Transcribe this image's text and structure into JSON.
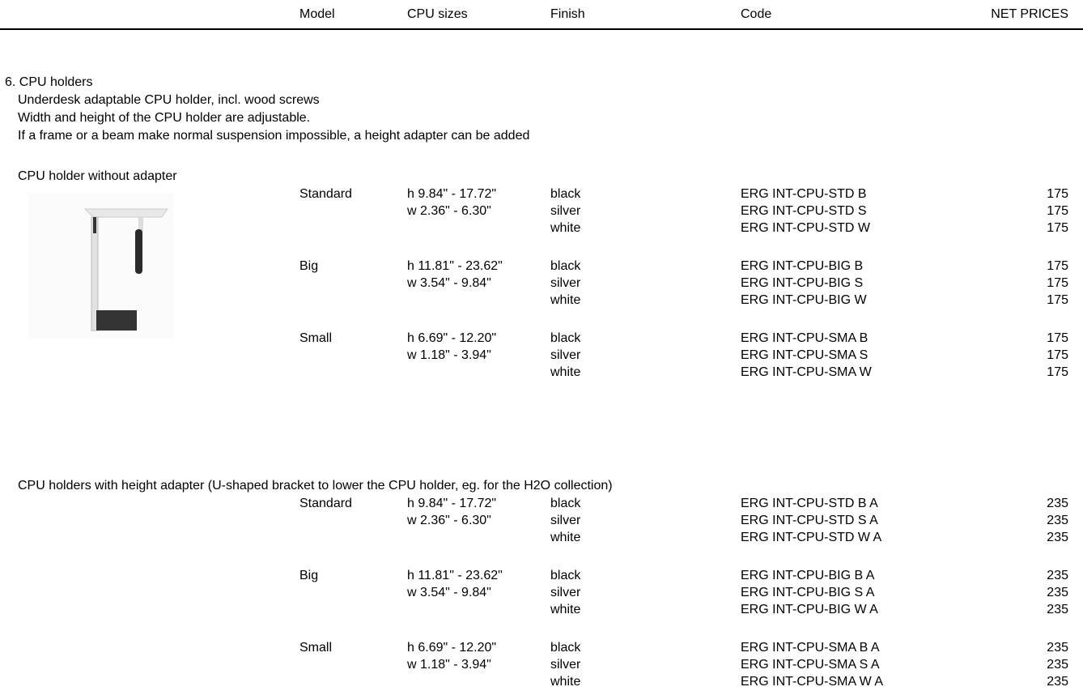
{
  "header": {
    "columns": [
      "Model",
      "CPU sizes",
      "Finish",
      "Code",
      "NET PRICES"
    ]
  },
  "section": {
    "title": "6. CPU holders",
    "description": [
      "Underdesk adaptable CPU holder, incl. wood screws",
      "Width and height of the CPU holder are adjustable.",
      "If a frame or a beam make normal suspension impossible, a height adapter can be added"
    ]
  },
  "groups": [
    {
      "title": "CPU holder without adapter",
      "models": [
        {
          "model": "Standard",
          "sizes": [
            "h 9.84\" - 17.72\"",
            "w 2.36\" - 6.30\""
          ],
          "rows": [
            {
              "finish": "black",
              "code": "ERG INT-CPU-STD B",
              "price": 175
            },
            {
              "finish": "silver",
              "code": "ERG INT-CPU-STD S",
              "price": 175
            },
            {
              "finish": "white",
              "code": "ERG INT-CPU-STD W",
              "price": 175
            }
          ]
        },
        {
          "model": "Big",
          "sizes": [
            "h 11.81\" - 23.62\"",
            "w 3.54\" - 9.84\""
          ],
          "rows": [
            {
              "finish": "black",
              "code": "ERG INT-CPU-BIG B",
              "price": 175
            },
            {
              "finish": "silver",
              "code": "ERG INT-CPU-BIG S",
              "price": 175
            },
            {
              "finish": "white",
              "code": "ERG INT-CPU-BIG W",
              "price": 175
            }
          ]
        },
        {
          "model": "Small",
          "sizes": [
            "h 6.69\" - 12.20\"",
            "w 1.18\" - 3.94\""
          ],
          "rows": [
            {
              "finish": "black",
              "code": "ERG INT-CPU-SMA B",
              "price": 175
            },
            {
              "finish": "silver",
              "code": "ERG INT-CPU-SMA S",
              "price": 175
            },
            {
              "finish": "white",
              "code": "ERG INT-CPU-SMA W",
              "price": 175
            }
          ]
        }
      ]
    },
    {
      "title": "CPU holders with height adapter (U-shaped bracket to lower the CPU holder, eg. for the H2O collection)",
      "models": [
        {
          "model": "Standard",
          "sizes": [
            "h 9.84\" - 17.72\"",
            "w 2.36\" - 6.30\""
          ],
          "rows": [
            {
              "finish": "black",
              "code": "ERG INT-CPU-STD B A",
              "price": 235
            },
            {
              "finish": "silver",
              "code": "ERG INT-CPU-STD S A",
              "price": 235
            },
            {
              "finish": "white",
              "code": "ERG INT-CPU-STD W A",
              "price": 235
            }
          ]
        },
        {
          "model": "Big",
          "sizes": [
            "h 11.81\" - 23.62\"",
            "w 3.54\" - 9.84\""
          ],
          "rows": [
            {
              "finish": "black",
              "code": "ERG INT-CPU-BIG B A",
              "price": 235
            },
            {
              "finish": "silver",
              "code": "ERG INT-CPU-BIG S A",
              "price": 235
            },
            {
              "finish": "white",
              "code": "ERG INT-CPU-BIG W A",
              "price": 235
            }
          ]
        },
        {
          "model": "Small",
          "sizes": [
            "h 6.69\" - 12.20\"",
            "w 1.18\" - 3.94\""
          ],
          "rows": [
            {
              "finish": "black",
              "code": "ERG INT-CPU-SMA B A",
              "price": 235
            },
            {
              "finish": "silver",
              "code": "ERG INT-CPU-SMA S A",
              "price": 235
            },
            {
              "finish": "white",
              "code": "ERG INT-CPU-SMA W A",
              "price": 235
            }
          ]
        }
      ]
    }
  ]
}
